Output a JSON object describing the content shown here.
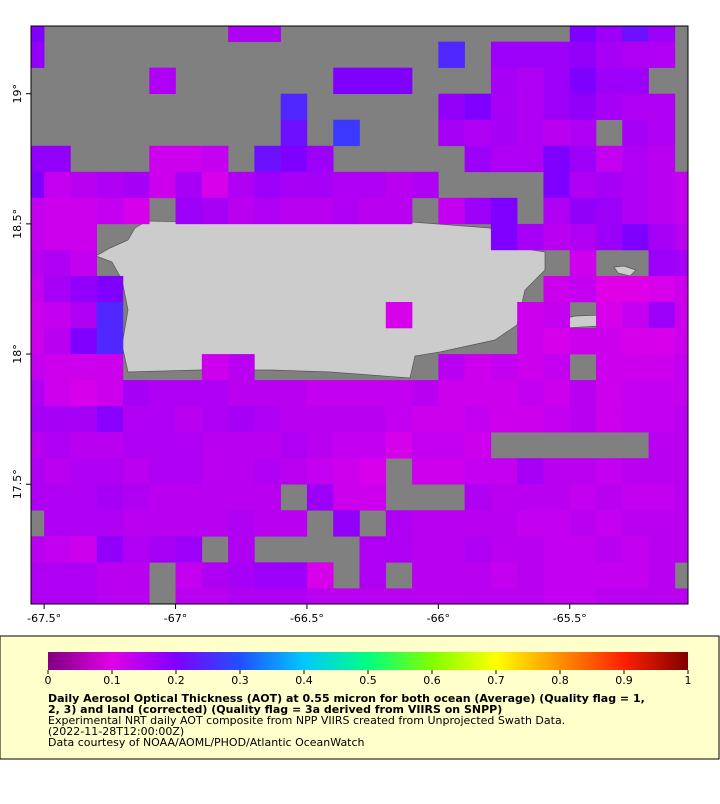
{
  "chart_data": {
    "type": "heatmap",
    "title_lines": [
      "Daily Aerosol Optical Thickness (AOT) at 0.55 micron for both ocean (Average) (Quality flag = 1,",
      "2, 3) and land (corrected) (Quality flag = 3a derived from VIIRS on SNPP)"
    ],
    "notes": [
      "Experimental NRT daily AOT composite from NPP VIIRS created from Unprojected Swath Data.",
      "(2022-11-28T12:00:00Z)",
      "Data courtesy of NOAA/AOML/PHOD/Atlantic OceanWatch"
    ],
    "xlim": [
      -67.55,
      -65.05
    ],
    "ylim": [
      17.04,
      19.26
    ],
    "xticks": [
      {
        "value": -67.5,
        "label": "-67.5°"
      },
      {
        "value": -67,
        "label": "-67°"
      },
      {
        "value": -66.5,
        "label": "-66.5°"
      },
      {
        "value": -66,
        "label": "-66°"
      },
      {
        "value": -65.5,
        "label": "-65.5°"
      }
    ],
    "yticks": [
      {
        "value": 17.5,
        "label": "17.5°"
      },
      {
        "value": 18,
        "label": "18°"
      },
      {
        "value": 18.5,
        "label": "18.5°"
      },
      {
        "value": 19,
        "label": "19°"
      }
    ],
    "x": [
      -67.55,
      -67.45,
      -67.35,
      -67.25,
      -67.15,
      -67.05,
      -66.95,
      -66.85,
      -66.75,
      -66.65,
      -66.55,
      -66.45,
      -66.35,
      -66.25,
      -66.15,
      -66.05,
      -65.95,
      -65.85,
      -65.75,
      -65.65,
      -65.55,
      -65.45,
      -65.35,
      -65.25,
      -65.15,
      -65.05
    ],
    "y": [
      19.25,
      19.15,
      19.05,
      18.95,
      18.85,
      18.75,
      18.65,
      18.55,
      18.45,
      18.35,
      18.25,
      18.15,
      18.05,
      17.95,
      17.85,
      17.75,
      17.65,
      17.55,
      17.45,
      17.35,
      17.25,
      17.15,
      17.05
    ],
    "values": [
      [
        0.2,
        null,
        null,
        null,
        null,
        null,
        null,
        null,
        0.15,
        0.15,
        null,
        null,
        null,
        null,
        null,
        null,
        null,
        null,
        null,
        null,
        null,
        0.2,
        0.17,
        0.22,
        0.17,
        null
      ],
      [
        0.18,
        null,
        null,
        null,
        null,
        null,
        null,
        null,
        null,
        null,
        null,
        null,
        null,
        null,
        null,
        null,
        0.25,
        null,
        0.17,
        0.17,
        0.17,
        0.18,
        0.16,
        0.15,
        0.15,
        null
      ],
      [
        null,
        null,
        null,
        null,
        null,
        0.15,
        null,
        null,
        null,
        null,
        null,
        null,
        0.2,
        0.2,
        0.2,
        null,
        null,
        null,
        0.16,
        0.15,
        0.17,
        0.2,
        0.17,
        0.17,
        null,
        null
      ],
      [
        null,
        null,
        null,
        null,
        null,
        null,
        null,
        null,
        null,
        null,
        0.25,
        null,
        null,
        null,
        null,
        null,
        0.18,
        0.2,
        0.16,
        0.15,
        0.17,
        0.18,
        0.16,
        0.15,
        0.15,
        null
      ],
      [
        null,
        null,
        null,
        null,
        null,
        null,
        null,
        null,
        null,
        null,
        0.22,
        null,
        0.27,
        null,
        null,
        null,
        0.16,
        0.15,
        0.16,
        0.15,
        0.14,
        0.15,
        null,
        0.16,
        0.15,
        null
      ],
      [
        0.18,
        0.18,
        null,
        null,
        null,
        0.12,
        0.12,
        0.13,
        null,
        0.22,
        0.2,
        0.17,
        null,
        null,
        null,
        null,
        null,
        0.17,
        0.15,
        0.15,
        0.2,
        0.17,
        0.13,
        0.15,
        0.14,
        null
      ],
      [
        0.2,
        0.13,
        0.14,
        0.15,
        0.16,
        0.12,
        0.16,
        0.11,
        0.15,
        0.17,
        0.16,
        0.16,
        0.15,
        0.15,
        0.14,
        0.15,
        null,
        null,
        null,
        null,
        0.2,
        0.15,
        0.16,
        0.15,
        0.14,
        0.13
      ],
      [
        0.13,
        0.12,
        0.12,
        0.13,
        0.11,
        null,
        0.17,
        0.16,
        0.14,
        0.15,
        0.14,
        0.14,
        0.15,
        0.14,
        0.14,
        null,
        0.13,
        0.17,
        0.2,
        null,
        0.15,
        0.18,
        0.17,
        0.15,
        0.14,
        0.13
      ],
      [
        0.13,
        0.12,
        0.12,
        null,
        null,
        null,
        null,
        null,
        null,
        null,
        null,
        null,
        null,
        null,
        null,
        null,
        null,
        null,
        0.2,
        0.16,
        0.14,
        0.15,
        0.17,
        0.2,
        0.16,
        0.14
      ],
      [
        0.14,
        0.15,
        0.13,
        null,
        null,
        null,
        null,
        null,
        null,
        null,
        null,
        null,
        null,
        null,
        null,
        null,
        null,
        null,
        null,
        null,
        null,
        0.12,
        null,
        null,
        0.17,
        0.16
      ],
      [
        0.13,
        0.16,
        0.18,
        0.2,
        null,
        null,
        null,
        null,
        null,
        null,
        null,
        null,
        null,
        null,
        null,
        null,
        null,
        null,
        null,
        null,
        0.12,
        0.13,
        0.1,
        0.1,
        0.11,
        0.12
      ],
      [
        0.12,
        0.13,
        0.15,
        0.25,
        null,
        null,
        null,
        null,
        null,
        null,
        null,
        null,
        null,
        null,
        0.11,
        null,
        null,
        null,
        null,
        0.12,
        0.13,
        null,
        0.11,
        0.13,
        0.17,
        0.12
      ],
      [
        0.12,
        0.14,
        0.2,
        0.25,
        null,
        null,
        null,
        null,
        null,
        null,
        null,
        null,
        null,
        null,
        null,
        null,
        null,
        null,
        null,
        0.12,
        0.11,
        0.12,
        0.12,
        0.11,
        0.11,
        0.12
      ],
      [
        0.13,
        0.12,
        0.12,
        0.12,
        null,
        null,
        null,
        0.12,
        0.14,
        null,
        null,
        null,
        null,
        null,
        null,
        null,
        0.14,
        0.12,
        0.13,
        0.12,
        0.13,
        null,
        0.12,
        0.12,
        0.12,
        0.13
      ],
      [
        0.15,
        0.12,
        0.11,
        0.12,
        0.16,
        0.15,
        0.15,
        0.15,
        0.14,
        0.14,
        0.14,
        0.13,
        0.13,
        0.13,
        0.13,
        0.14,
        0.12,
        0.12,
        0.12,
        0.13,
        0.12,
        0.14,
        0.12,
        0.13,
        0.13,
        0.13
      ],
      [
        0.16,
        0.16,
        0.16,
        0.19,
        0.15,
        0.15,
        0.14,
        0.15,
        0.16,
        0.15,
        0.14,
        0.14,
        0.14,
        0.14,
        0.13,
        0.12,
        0.12,
        0.13,
        0.12,
        0.12,
        0.13,
        0.14,
        0.12,
        0.13,
        0.13,
        0.14
      ],
      [
        0.14,
        0.15,
        0.14,
        0.14,
        0.15,
        0.15,
        0.15,
        0.14,
        0.14,
        0.14,
        0.15,
        0.14,
        0.13,
        0.13,
        0.11,
        0.13,
        0.13,
        0.12,
        null,
        null,
        null,
        null,
        null,
        null,
        0.14,
        0.14
      ],
      [
        0.15,
        0.14,
        0.15,
        0.15,
        0.14,
        0.15,
        0.15,
        0.14,
        0.14,
        0.15,
        0.14,
        0.13,
        0.12,
        0.11,
        null,
        0.12,
        0.12,
        0.13,
        0.13,
        0.16,
        0.14,
        0.14,
        0.13,
        0.14,
        0.14,
        0.14
      ],
      [
        0.15,
        0.15,
        0.15,
        0.16,
        0.15,
        0.14,
        0.14,
        0.14,
        0.14,
        0.14,
        null,
        0.17,
        0.12,
        0.12,
        null,
        null,
        null,
        0.15,
        0.14,
        0.14,
        0.14,
        0.13,
        0.14,
        0.13,
        0.13,
        0.14
      ],
      [
        null,
        0.15,
        0.15,
        0.15,
        0.14,
        0.14,
        0.14,
        0.14,
        0.15,
        0.14,
        0.14,
        null,
        0.18,
        null,
        0.15,
        0.14,
        0.14,
        0.14,
        0.14,
        0.13,
        0.13,
        0.14,
        0.13,
        0.14,
        0.14,
        0.14
      ],
      [
        0.14,
        0.13,
        0.12,
        0.18,
        0.15,
        0.16,
        0.17,
        null,
        0.15,
        null,
        null,
        null,
        null,
        0.15,
        0.15,
        0.14,
        0.14,
        0.15,
        0.14,
        0.14,
        0.13,
        0.13,
        0.14,
        0.13,
        0.14,
        0.14
      ],
      [
        0.15,
        0.15,
        0.15,
        0.14,
        0.14,
        null,
        0.13,
        0.15,
        0.16,
        0.17,
        0.17,
        0.11,
        null,
        0.15,
        null,
        0.14,
        0.14,
        0.14,
        0.13,
        0.14,
        0.13,
        0.13,
        0.13,
        0.13,
        0.14,
        null
      ],
      [
        0.15,
        0.15,
        0.15,
        0.14,
        0.14,
        null,
        0.14,
        0.14,
        0.15,
        0.15,
        0.15,
        0.14,
        0.14,
        0.14,
        0.14,
        0.14,
        0.14,
        0.14,
        0.14,
        0.14,
        0.13,
        0.13,
        0.14,
        0.14,
        0.14,
        0.14
      ]
    ],
    "cell_size": 0.1,
    "colormap": [
      "#800080",
      "#e000e8",
      "#8000ff",
      "#2050ff",
      "#00c8ff",
      "#00ff80",
      "#80ff00",
      "#ffff00",
      "#ff9000",
      "#ff2000",
      "#800000"
    ],
    "colorbar": {
      "lim": [
        0,
        1
      ],
      "ticks": [
        0,
        0.1,
        0.2,
        0.3,
        0.4,
        0.5,
        0.6,
        0.7,
        0.8,
        0.9,
        1
      ]
    }
  }
}
